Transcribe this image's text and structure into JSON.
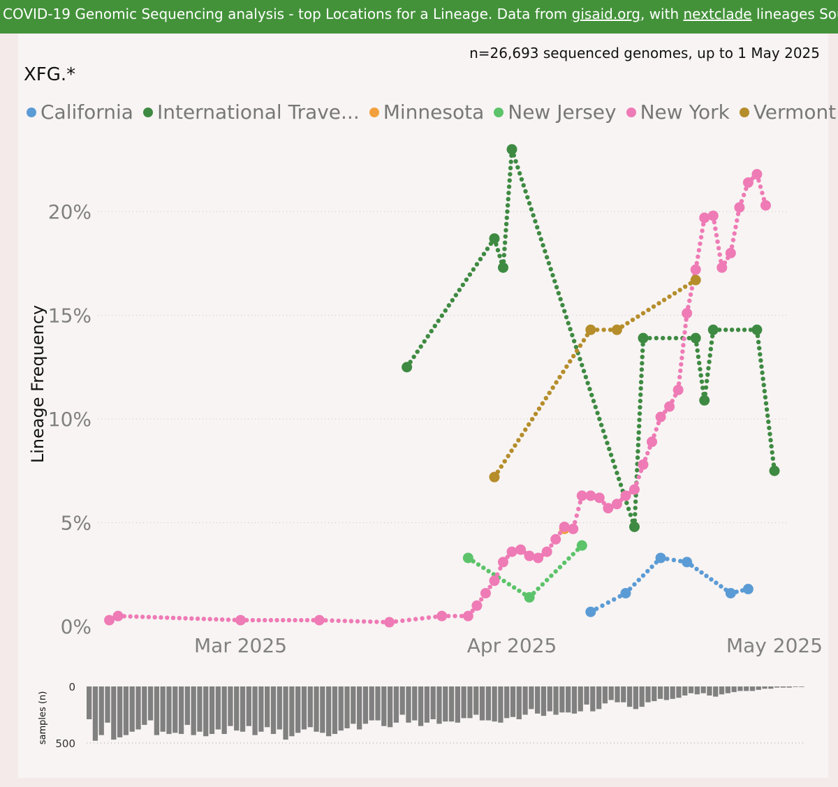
{
  "banner": {
    "prefix": "COVID-19 Genomic Sequencing analysis - top Locations for a Lineage. Data from ",
    "link1": "gisaid.org",
    "middle": ", with ",
    "link2": "nextclade",
    "suffix": " lineages Source fi"
  },
  "count_text": "n=26,693 sequenced genomes, up to 1 May 2025",
  "lineage": "XFG.*",
  "chart_data": [
    {
      "type": "line",
      "ylabel": "Lineage Frequency",
      "xlabel": "",
      "x_range": [
        "2025-02-13",
        "2025-05-01"
      ],
      "ylim": [
        0,
        0.235
      ],
      "yticks": [
        {
          "v": 0,
          "label": "0%"
        },
        {
          "v": 0.05,
          "label": "5%"
        },
        {
          "v": 0.1,
          "label": "10%"
        },
        {
          "v": 0.15,
          "label": "15%"
        },
        {
          "v": 0.2,
          "label": "20%"
        }
      ],
      "xticks": [
        {
          "date": "2025-03-01",
          "label": "Mar 2025"
        },
        {
          "date": "2025-04-01",
          "label": "Apr 2025"
        },
        {
          "date": "2025-05-01",
          "label": "May 2025"
        }
      ],
      "grid": "horizontal-dotted",
      "legend_position": "top",
      "series": [
        {
          "name": "California",
          "color": "#5b9bd5",
          "points": [
            [
              "2025-04-10",
              0.007
            ],
            [
              "2025-04-14",
              0.016
            ],
            [
              "2025-04-18",
              0.033
            ],
            [
              "2025-04-21",
              0.031
            ],
            [
              "2025-04-26",
              0.016
            ],
            [
              "2025-04-28",
              0.018
            ]
          ]
        },
        {
          "name": "International Trave...",
          "color": "#3e8a42",
          "points": [
            [
              "2025-03-20",
              0.125
            ],
            [
              "2025-03-30",
              0.187
            ],
            [
              "2025-03-31",
              0.173
            ],
            [
              "2025-04-01",
              0.23
            ],
            [
              "2025-04-15",
              0.048
            ],
            [
              "2025-04-16",
              0.139
            ],
            [
              "2025-04-22",
              0.139
            ],
            [
              "2025-04-23",
              0.109
            ],
            [
              "2025-04-24",
              0.143
            ],
            [
              "2025-04-29",
              0.143
            ],
            [
              "2025-05-01",
              0.075
            ]
          ]
        },
        {
          "name": "Minnesota",
          "color": "#f2a03d",
          "points": [
            [
              "2025-04-07",
              0.047
            ]
          ]
        },
        {
          "name": "New Jersey",
          "color": "#5cc36a",
          "points": [
            [
              "2025-03-27",
              0.033
            ],
            [
              "2025-04-03",
              0.014
            ],
            [
              "2025-04-09",
              0.039
            ]
          ]
        },
        {
          "name": "New York",
          "color": "#ee7bb5",
          "points": [
            [
              "2025-02-14",
              0.003
            ],
            [
              "2025-02-15",
              0.005
            ],
            [
              "2025-03-01",
              0.003
            ],
            [
              "2025-03-10",
              0.003
            ],
            [
              "2025-03-18",
              0.002
            ],
            [
              "2025-03-24",
              0.005
            ],
            [
              "2025-03-27",
              0.005
            ],
            [
              "2025-03-28",
              0.01
            ],
            [
              "2025-03-29",
              0.016
            ],
            [
              "2025-03-30",
              0.022
            ],
            [
              "2025-03-31",
              0.031
            ],
            [
              "2025-04-01",
              0.036
            ],
            [
              "2025-04-02",
              0.037
            ],
            [
              "2025-04-03",
              0.034
            ],
            [
              "2025-04-04",
              0.033
            ],
            [
              "2025-04-05",
              0.036
            ],
            [
              "2025-04-06",
              0.042
            ],
            [
              "2025-04-07",
              0.048
            ],
            [
              "2025-04-08",
              0.047
            ],
            [
              "2025-04-09",
              0.063
            ],
            [
              "2025-04-10",
              0.063
            ],
            [
              "2025-04-11",
              0.062
            ],
            [
              "2025-04-12",
              0.057
            ],
            [
              "2025-04-13",
              0.059
            ],
            [
              "2025-04-14",
              0.063
            ],
            [
              "2025-04-15",
              0.066
            ],
            [
              "2025-04-16",
              0.078
            ],
            [
              "2025-04-17",
              0.089
            ],
            [
              "2025-04-18",
              0.101
            ],
            [
              "2025-04-19",
              0.106
            ],
            [
              "2025-04-20",
              0.114
            ],
            [
              "2025-04-21",
              0.151
            ],
            [
              "2025-04-22",
              0.172
            ],
            [
              "2025-04-23",
              0.197
            ],
            [
              "2025-04-24",
              0.198
            ],
            [
              "2025-04-25",
              0.173
            ],
            [
              "2025-04-26",
              0.18
            ],
            [
              "2025-04-27",
              0.202
            ],
            [
              "2025-04-28",
              0.214
            ],
            [
              "2025-04-29",
              0.218
            ],
            [
              "2025-04-30",
              0.203
            ]
          ]
        },
        {
          "name": "Vermont",
          "color": "#b58d2b",
          "points": [
            [
              "2025-03-30",
              0.072
            ],
            [
              "2025-04-10",
              0.143
            ],
            [
              "2025-04-13",
              0.143
            ],
            [
              "2025-04-22",
              0.167
            ]
          ]
        }
      ]
    },
    {
      "type": "bar",
      "ylabel": "samples (n)",
      "yticks": [
        {
          "v": 0,
          "label": "0"
        },
        {
          "v": 500,
          "label": "500"
        }
      ],
      "ylim": [
        0,
        500
      ],
      "color": "#808080",
      "values": [
        290,
        480,
        430,
        320,
        470,
        450,
        430,
        400,
        380,
        340,
        300,
        430,
        400,
        420,
        410,
        420,
        340,
        430,
        400,
        440,
        420,
        380,
        420,
        350,
        390,
        400,
        350,
        430,
        400,
        360,
        420,
        380,
        470,
        440,
        410,
        380,
        360,
        400,
        410,
        440,
        420,
        390,
        370,
        330,
        380,
        330,
        300,
        300,
        350,
        360,
        320,
        250,
        320,
        300,
        350,
        320,
        290,
        330,
        310,
        310,
        320,
        280,
        280,
        250,
        300,
        300,
        310,
        320,
        280,
        270,
        290,
        250,
        200,
        240,
        260,
        220,
        250,
        230,
        230,
        240,
        220,
        160,
        220,
        200,
        150,
        120,
        140,
        140,
        180,
        200,
        180,
        140,
        130,
        110,
        120,
        110,
        100,
        80,
        60,
        70,
        60,
        80,
        90,
        70,
        60,
        50,
        40,
        40,
        40,
        30,
        20,
        20,
        10,
        10,
        10,
        5,
        5
      ]
    }
  ]
}
